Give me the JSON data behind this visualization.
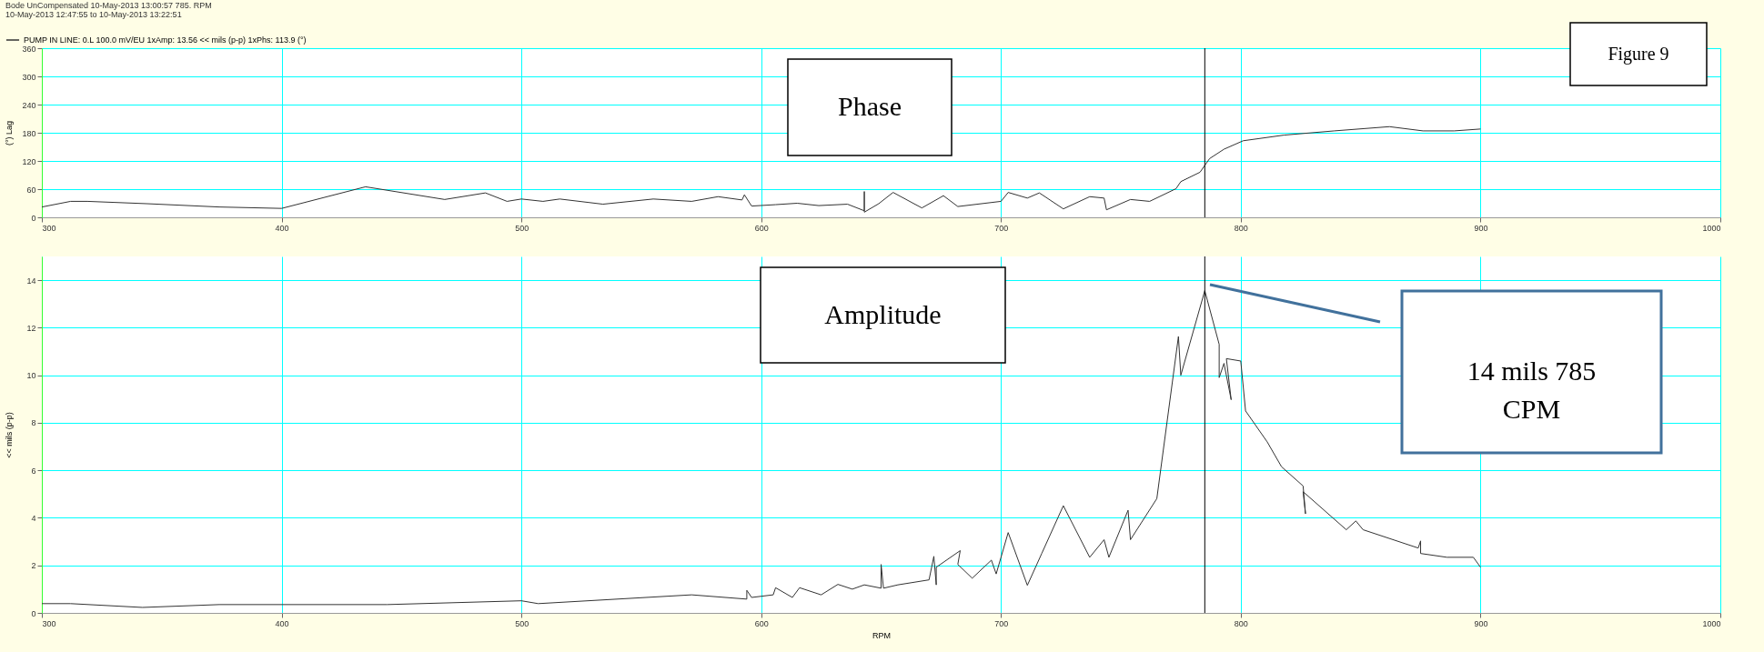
{
  "chart_data": [
    {
      "type": "line",
      "title": "Bode   UnCompensated   10-May-2013 13:00:57   785. RPM",
      "subtitle": "10-May-2013 12:47:55  to  10-May-2013 13:22:51",
      "ylabel": "(°) Lag",
      "xlim": [
        300,
        1000
      ],
      "xticks": [
        300,
        400,
        500,
        600,
        700,
        800,
        900,
        1000
      ],
      "ylim": [
        0,
        360
      ],
      "yticks": [
        0,
        60,
        120,
        180,
        240,
        300,
        360
      ],
      "grid": true,
      "legend": "top left",
      "annotations": [
        "Phase",
        "Figure 9"
      ],
      "ref_lines": [
        {
          "axis": "x",
          "value": 785,
          "color": "#000000"
        }
      ],
      "series": [
        {
          "name": "PUMP IN LINE:  0.L   100.0 mV/EU       1xAmp: 13.56 << mils (p-p)    1xPhs: 113.9 (°)",
          "color": "#333333",
          "x": [
            300,
            312,
            319,
            344,
            374,
            400,
            435,
            468,
            485,
            494,
            500,
            509,
            516,
            534,
            555,
            571,
            582,
            592,
            593,
            596,
            606,
            615,
            624,
            636,
            643,
            643,
            643,
            649,
            655,
            667,
            676,
            682,
            700,
            703,
            711,
            716,
            726,
            737,
            743,
            744,
            754,
            762,
            773,
            775,
            783,
            787,
            793,
            801,
            818,
            839,
            862,
            876,
            889,
            900
          ],
          "values": [
            22,
            34,
            34,
            29,
            22,
            19,
            65,
            38,
            52,
            34,
            39,
            34,
            39,
            28,
            39,
            34,
            44,
            37,
            48,
            24,
            27,
            30,
            25,
            28,
            14,
            55,
            11,
            29,
            53,
            20,
            46,
            23,
            34,
            53,
            41,
            52,
            18,
            44,
            41,
            16,
            38,
            34,
            61,
            76,
            96,
            125,
            145,
            163,
            175,
            184,
            193,
            184,
            184,
            188
          ]
        }
      ]
    },
    {
      "type": "line",
      "xlabel": "RPM",
      "ylabel": "<< mils (p-p)",
      "xlim": [
        300,
        1000
      ],
      "xticks": [
        300,
        400,
        500,
        600,
        700,
        800,
        900,
        1000
      ],
      "ylim": [
        0,
        15
      ],
      "yticks": [
        0,
        2,
        4,
        6,
        8,
        10,
        12,
        14
      ],
      "grid": true,
      "annotations": [
        "Amplitude",
        "14 mils 785 CPM"
      ],
      "ref_lines": [
        {
          "axis": "x",
          "value": 785,
          "color": "#000000"
        }
      ],
      "series": [
        {
          "color": "#333333",
          "x": [
            300,
            312,
            342,
            374,
            444,
            500,
            507,
            571,
            594,
            594,
            596,
            605,
            606,
            613,
            616,
            625,
            632,
            638,
            643,
            650,
            650,
            651,
            657,
            670,
            672,
            673,
            673,
            683,
            682,
            688,
            696,
            698,
            703,
            711,
            717,
            726,
            737,
            743,
            745,
            753,
            754,
            765,
            774,
            775,
            785,
            791,
            791,
            793,
            796,
            794,
            800,
            802,
            811,
            817,
            826,
            827,
            826,
            844,
            848,
            851,
            874,
            875,
            875,
            886,
            897,
            900
          ],
          "values": [
            0.39,
            0.39,
            0.23,
            0.35,
            0.35,
            0.51,
            0.39,
            0.76,
            0.58,
            0.95,
            0.65,
            0.76,
            1.06,
            0.65,
            1.06,
            0.76,
            1.2,
            1.0,
            1.18,
            1.04,
            2.04,
            1.04,
            1.18,
            1.39,
            2.38,
            1.18,
            1.92,
            2.62,
            2.04,
            1.46,
            2.22,
            1.64,
            3.38,
            1.16,
            2.5,
            4.51,
            2.34,
            3.08,
            2.34,
            4.32,
            3.08,
            4.81,
            11.63,
            10.0,
            13.56,
            11.3,
            9.9,
            10.5,
            8.97,
            10.7,
            10.6,
            8.5,
            7.2,
            6.15,
            5.34,
            4.17,
            5.1,
            3.5,
            3.87,
            3.5,
            2.73,
            3.03,
            2.5,
            2.34,
            2.34,
            1.92
          ]
        }
      ]
    }
  ]
}
